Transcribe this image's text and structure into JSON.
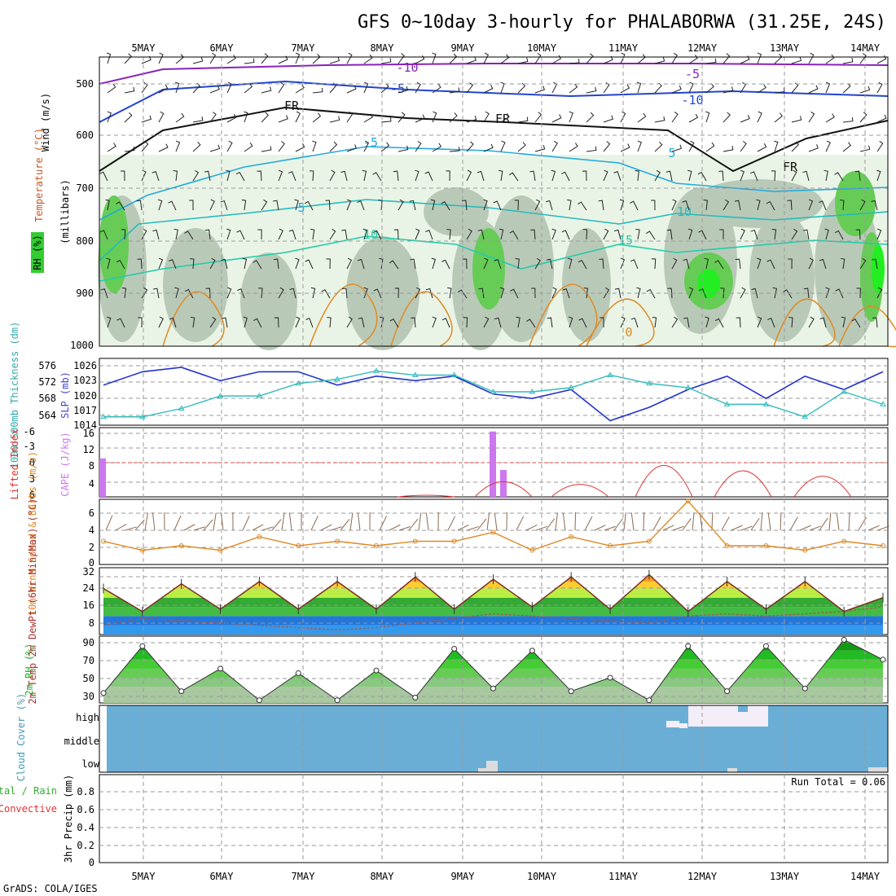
{
  "title": "GFS 0~10day 3-hourly for PHALABORWA (31.25E, 24S)",
  "credit": "GrADS: COLA/IGES",
  "days": [
    "5MAY",
    "6MAY",
    "7MAY",
    "8MAY",
    "9MAY",
    "10MAY",
    "11MAY",
    "12MAY",
    "13MAY",
    "14MAY"
  ],
  "colors": {
    "rh_green": "#33cc33",
    "thickness": "#33bbbb",
    "slp": "#2233cc",
    "cape": "#cc77ee",
    "lifted": "#dd3333",
    "wind": "#dd8822",
    "cloud": "#6aaed6",
    "highcloud": "#f4eef8"
  },
  "panels": {
    "upper_air": {
      "ylabels": [
        "Wind (m/s)",
        "Temperature (°C)",
        "RH (%)",
        "(millibars)"
      ],
      "levels": [
        "500",
        "600",
        "700",
        "800",
        "900",
        "1000"
      ],
      "contour_labels": [
        "-10",
        "-5",
        "FR",
        "FR",
        "-5",
        "-10",
        "-5",
        "5",
        "5",
        "10",
        "15",
        "15",
        "10",
        "FR",
        "0"
      ]
    },
    "slp": {
      "ylabel_left": "1000-500mb Thickness (dm)",
      "ylabel_right": "SLP (mb)",
      "left_ticks": [
        "576",
        "572",
        "568",
        "564"
      ],
      "right_ticks": [
        "1026",
        "1023",
        "1020",
        "1017",
        "1014"
      ]
    },
    "cape": {
      "ylabel_left": "Lifted Index",
      "ylabel_right": "CAPE (J/kg)",
      "left_ticks": [
        "-6",
        "-3",
        "0",
        "3",
        "6"
      ],
      "right_ticks": [
        "16",
        "12",
        "8",
        "4"
      ]
    },
    "wind10m": {
      "ylabel": "10m Wind Speed & Barbs (m/s)",
      "ticks": [
        "6",
        "4",
        "2",
        "0"
      ]
    },
    "temp": {
      "ylabel": "2m Temp 2m DewPt (6hr Min/Max) (°C)",
      "ticks": [
        "32",
        "24",
        "16",
        "8"
      ]
    },
    "rh": {
      "ylabel": "2m RH (%)",
      "ticks": [
        "90",
        "70",
        "50",
        "30"
      ]
    },
    "cloud": {
      "ylabel": "Cloud Cover (%)",
      "ticks": [
        "high",
        "middle",
        "low"
      ]
    },
    "precip": {
      "ylabel": "3hr Precip (mm)",
      "legend_left": "Total / Rain",
      "legend_conv": "Convective",
      "run_total": "Run Total = 0.06",
      "ticks": [
        "0.8",
        "0.6",
        "0.4",
        "0.2",
        "0"
      ]
    }
  },
  "chart_data": [
    {
      "type": "line",
      "title": "1000-500mb Thickness (dm) / SLP (mb)",
      "x": [
        "4MAY 12Z",
        "5MAY",
        "5MAY 12Z",
        "6MAY",
        "6MAY 12Z",
        "7MAY",
        "7MAY 12Z",
        "8MAY",
        "8MAY 12Z",
        "9MAY",
        "9MAY 12Z",
        "10MAY",
        "10MAY 12Z",
        "11MAY",
        "11MAY 12Z",
        "12MAY",
        "12MAY 12Z",
        "13MAY",
        "13MAY 12Z",
        "14MAY",
        "14MAY 06Z"
      ],
      "series": [
        {
          "name": "SLP (mb)",
          "axis": "right",
          "values": [
            1022,
            1025,
            1026,
            1023,
            1025,
            1025,
            1022,
            1024,
            1023,
            1024,
            1020,
            1019,
            1021,
            1014,
            1017,
            1021,
            1024,
            1019,
            1024,
            1021,
            1025
          ]
        },
        {
          "name": "1000-500mb Thickness (dm)",
          "axis": "left",
          "values": [
            564,
            564,
            566,
            569,
            569,
            572,
            573,
            575,
            574,
            574,
            570,
            570,
            571,
            574,
            572,
            571,
            567,
            567,
            564,
            570,
            567
          ]
        }
      ],
      "ylim_right": [
        1013,
        1028
      ],
      "ylim_left": [
        562,
        578
      ]
    },
    {
      "type": "bar",
      "title": "CAPE (J/kg)",
      "x": [
        "4MAY 12Z",
        "9MAY 09Z",
        "9MAY 12Z"
      ],
      "values": [
        10,
        17,
        7
      ]
    },
    {
      "type": "line",
      "title": "Lifted Index",
      "x": [
        "8MAY 12Z",
        "9MAY 12Z",
        "10MAY 12Z",
        "11MAY 12Z",
        "12MAY 12Z",
        "13MAY 12Z"
      ],
      "values": [
        6,
        3.5,
        4,
        0.5,
        1.5,
        2.5
      ],
      "ylim": [
        6,
        -6
      ]
    },
    {
      "type": "line",
      "title": "10m Wind Speed (m/s)",
      "x": [
        "4MAY 12Z",
        "5MAY",
        "5MAY 12Z",
        "6MAY",
        "6MAY 12Z",
        "7MAY",
        "7MAY 12Z",
        "8MAY",
        "8MAY 12Z",
        "9MAY",
        "9MAY 12Z",
        "10MAY",
        "10MAY 12Z",
        "11MAY",
        "11MAY 12Z",
        "12MAY",
        "12MAY 12Z",
        "13MAY",
        "13MAY 12Z",
        "14MAY",
        "14MAY 06Z"
      ],
      "values": [
        2.5,
        1.5,
        2,
        1.5,
        3,
        2,
        2.5,
        2,
        2.5,
        2.5,
        3.5,
        1.5,
        3,
        2,
        2.5,
        7,
        2,
        2,
        1.5,
        2.5,
        2
      ],
      "ylim": [
        0,
        7
      ]
    },
    {
      "type": "area",
      "title": "2m Temp (°C)",
      "x": [
        "4MAY 12Z",
        "5MAY",
        "5MAY 12Z",
        "6MAY",
        "6MAY 12Z",
        "7MAY",
        "7MAY 12Z",
        "8MAY",
        "8MAY 12Z",
        "9MAY",
        "9MAY 12Z",
        "10MAY",
        "10MAY 12Z",
        "11MAY",
        "11MAY 12Z",
        "12MAY",
        "12MAY 12Z",
        "13MAY",
        "13MAY 12Z",
        "14MAY",
        "14MAY 06Z"
      ],
      "series": [
        {
          "name": "2m Temp",
          "values": [
            24,
            14,
            26,
            15,
            27,
            15,
            27,
            15,
            29,
            15,
            28,
            16,
            29,
            15,
            30,
            14,
            27,
            15,
            27,
            14,
            20
          ]
        },
        {
          "name": "2m DewPt",
          "values": [
            8,
            11,
            10,
            9,
            8,
            7,
            6,
            7,
            9,
            11,
            13,
            12,
            11,
            10,
            9,
            12,
            13,
            12,
            13,
            14,
            16
          ]
        }
      ],
      "ylim": [
        4,
        33
      ]
    },
    {
      "type": "area",
      "title": "2m RH (%)",
      "x": [
        "4MAY 12Z",
        "5MAY",
        "5MAY 12Z",
        "6MAY",
        "6MAY 12Z",
        "7MAY",
        "7MAY 12Z",
        "8MAY",
        "8MAY 12Z",
        "9MAY",
        "9MAY 12Z",
        "10MAY",
        "10MAY 12Z",
        "11MAY",
        "11MAY 12Z",
        "12MAY",
        "12MAY 12Z",
        "13MAY",
        "13MAY 12Z",
        "14MAY",
        "14MAY 06Z"
      ],
      "values": [
        33,
        85,
        35,
        60,
        25,
        55,
        25,
        58,
        28,
        82,
        38,
        80,
        35,
        50,
        25,
        85,
        35,
        85,
        38,
        92,
        70
      ],
      "ylim": [
        22,
        96
      ]
    },
    {
      "type": "bar",
      "title": "3hr Precip (mm)",
      "x": [
        "4MAY 12Z",
        "14MAY 06Z"
      ],
      "values": [
        0,
        0
      ],
      "ylim": [
        0,
        1
      ]
    }
  ]
}
